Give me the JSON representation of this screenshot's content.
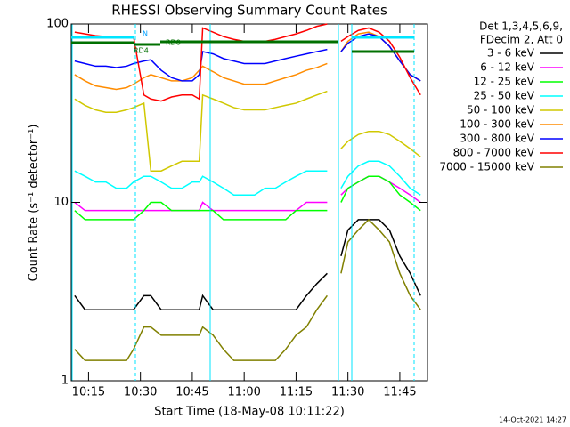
{
  "chart_data": {
    "type": "line",
    "title": "RHESSI Observing Summary Count Rates",
    "x_label": "Start Time (18-May-08 10:11:22)",
    "y_label": "Count Rate (s⁻¹ detector⁻¹)",
    "legend_header": [
      "Det 1,3,4,5,6,9,",
      "FDecim 2, Att 0"
    ],
    "annotations": [
      "N",
      "RD0",
      "RD4"
    ],
    "footer": "14-Oct-2021 14:27",
    "log_y": true,
    "xlim": [
      10,
      113
    ],
    "xticks": [
      {
        "value": 15,
        "label": "10:15"
      },
      {
        "value": 30,
        "label": "10:30"
      },
      {
        "value": 45,
        "label": "10:45"
      },
      {
        "value": 60,
        "label": "11:00"
      },
      {
        "value": 75,
        "label": "11:15"
      },
      {
        "value": 90,
        "label": "11:30"
      },
      {
        "value": 105,
        "label": "11:45"
      }
    ],
    "ylim": [
      1,
      100
    ],
    "yticks": [
      1,
      10,
      100
    ],
    "x": [
      11,
      14,
      17,
      20,
      23,
      26,
      28,
      31,
      33,
      36,
      39,
      42,
      45,
      47,
      48,
      51,
      54,
      57,
      60,
      63,
      66,
      69,
      72,
      75,
      78,
      81,
      84,
      85,
      88,
      90,
      93,
      96,
      99,
      102,
      105,
      108,
      111
    ],
    "series": [
      {
        "name": "3 - 6 keV",
        "color": "#000000",
        "values": [
          3,
          2.5,
          2.5,
          2.5,
          2.5,
          2.5,
          2.5,
          3,
          3,
          2.5,
          2.5,
          2.5,
          2.5,
          2.5,
          3,
          2.5,
          2.5,
          2.5,
          2.5,
          2.5,
          2.5,
          2.5,
          2.5,
          2.5,
          3,
          3.5,
          4,
          null,
          5,
          7,
          8,
          8,
          8,
          7,
          5,
          4,
          3
        ]
      },
      {
        "name": "6 - 12 keV",
        "color": "#ff00ff",
        "values": [
          10,
          9,
          9,
          9,
          9,
          9,
          9,
          9,
          9,
          9,
          9,
          9,
          9,
          9,
          10,
          9,
          9,
          9,
          9,
          9,
          9,
          9,
          9,
          9,
          10,
          10,
          10,
          null,
          11,
          12,
          13,
          14,
          14,
          13,
          12,
          11,
          10
        ]
      },
      {
        "name": "12 - 25 keV",
        "color": "#00ff00",
        "values": [
          9,
          8,
          8,
          8,
          8,
          8,
          8,
          9,
          10,
          10,
          9,
          9,
          9,
          9,
          9,
          9,
          8,
          8,
          8,
          8,
          8,
          8,
          8,
          9,
          9,
          9,
          9,
          null,
          10,
          12,
          13,
          14,
          14,
          13,
          11,
          10,
          9
        ]
      },
      {
        "name": "25 - 50 keV",
        "color": "#00ffff",
        "values": [
          15,
          14,
          13,
          13,
          12,
          12,
          13,
          14,
          14,
          13,
          12,
          12,
          13,
          13,
          14,
          13,
          12,
          11,
          11,
          11,
          12,
          12,
          13,
          14,
          15,
          15,
          15,
          null,
          12,
          14,
          16,
          17,
          17,
          16,
          14,
          12,
          11
        ]
      },
      {
        "name": "50 - 100 keV",
        "color": "#d0c800",
        "values": [
          38,
          35,
          33,
          32,
          32,
          33,
          34,
          36,
          15,
          15,
          16,
          17,
          17,
          17,
          40,
          38,
          36,
          34,
          33,
          33,
          33,
          34,
          35,
          36,
          38,
          40,
          42,
          null,
          20,
          22,
          24,
          25,
          25,
          24,
          22,
          20,
          18
        ]
      },
      {
        "name": "100 - 300 keV",
        "color": "#ff8c00",
        "values": [
          52,
          48,
          45,
          44,
          43,
          44,
          46,
          50,
          52,
          50,
          48,
          48,
          50,
          55,
          58,
          54,
          50,
          48,
          46,
          46,
          46,
          48,
          50,
          52,
          55,
          57,
          60,
          null,
          70,
          80,
          88,
          90,
          85,
          75,
          62,
          52,
          48
        ]
      },
      {
        "name": "300 - 800 keV",
        "color": "#0000ff",
        "values": [
          62,
          60,
          58,
          58,
          57,
          58,
          60,
          62,
          63,
          55,
          50,
          48,
          48,
          52,
          70,
          68,
          64,
          62,
          60,
          60,
          60,
          62,
          64,
          66,
          68,
          70,
          72,
          null,
          70,
          78,
          85,
          88,
          85,
          75,
          62,
          52,
          48
        ]
      },
      {
        "name": "800 - 7000 keV",
        "color": "#ff0000",
        "values": [
          90,
          88,
          86,
          85,
          84,
          85,
          85,
          40,
          38,
          37,
          39,
          40,
          40,
          38,
          95,
          90,
          85,
          82,
          80,
          80,
          80,
          82,
          85,
          88,
          92,
          97,
          100,
          null,
          80,
          85,
          92,
          95,
          90,
          80,
          65,
          50,
          40
        ]
      },
      {
        "name": "7000 - 15000 keV",
        "color": "#808000",
        "values": [
          1.5,
          1.3,
          1.3,
          1.3,
          1.3,
          1.3,
          1.5,
          2,
          2,
          1.8,
          1.8,
          1.8,
          1.8,
          1.8,
          2,
          1.8,
          1.5,
          1.3,
          1.3,
          1.3,
          1.3,
          1.3,
          1.5,
          1.8,
          2,
          2.5,
          3,
          null,
          4,
          6,
          7,
          8,
          7,
          6,
          4,
          3,
          2.5
        ]
      }
    ]
  }
}
